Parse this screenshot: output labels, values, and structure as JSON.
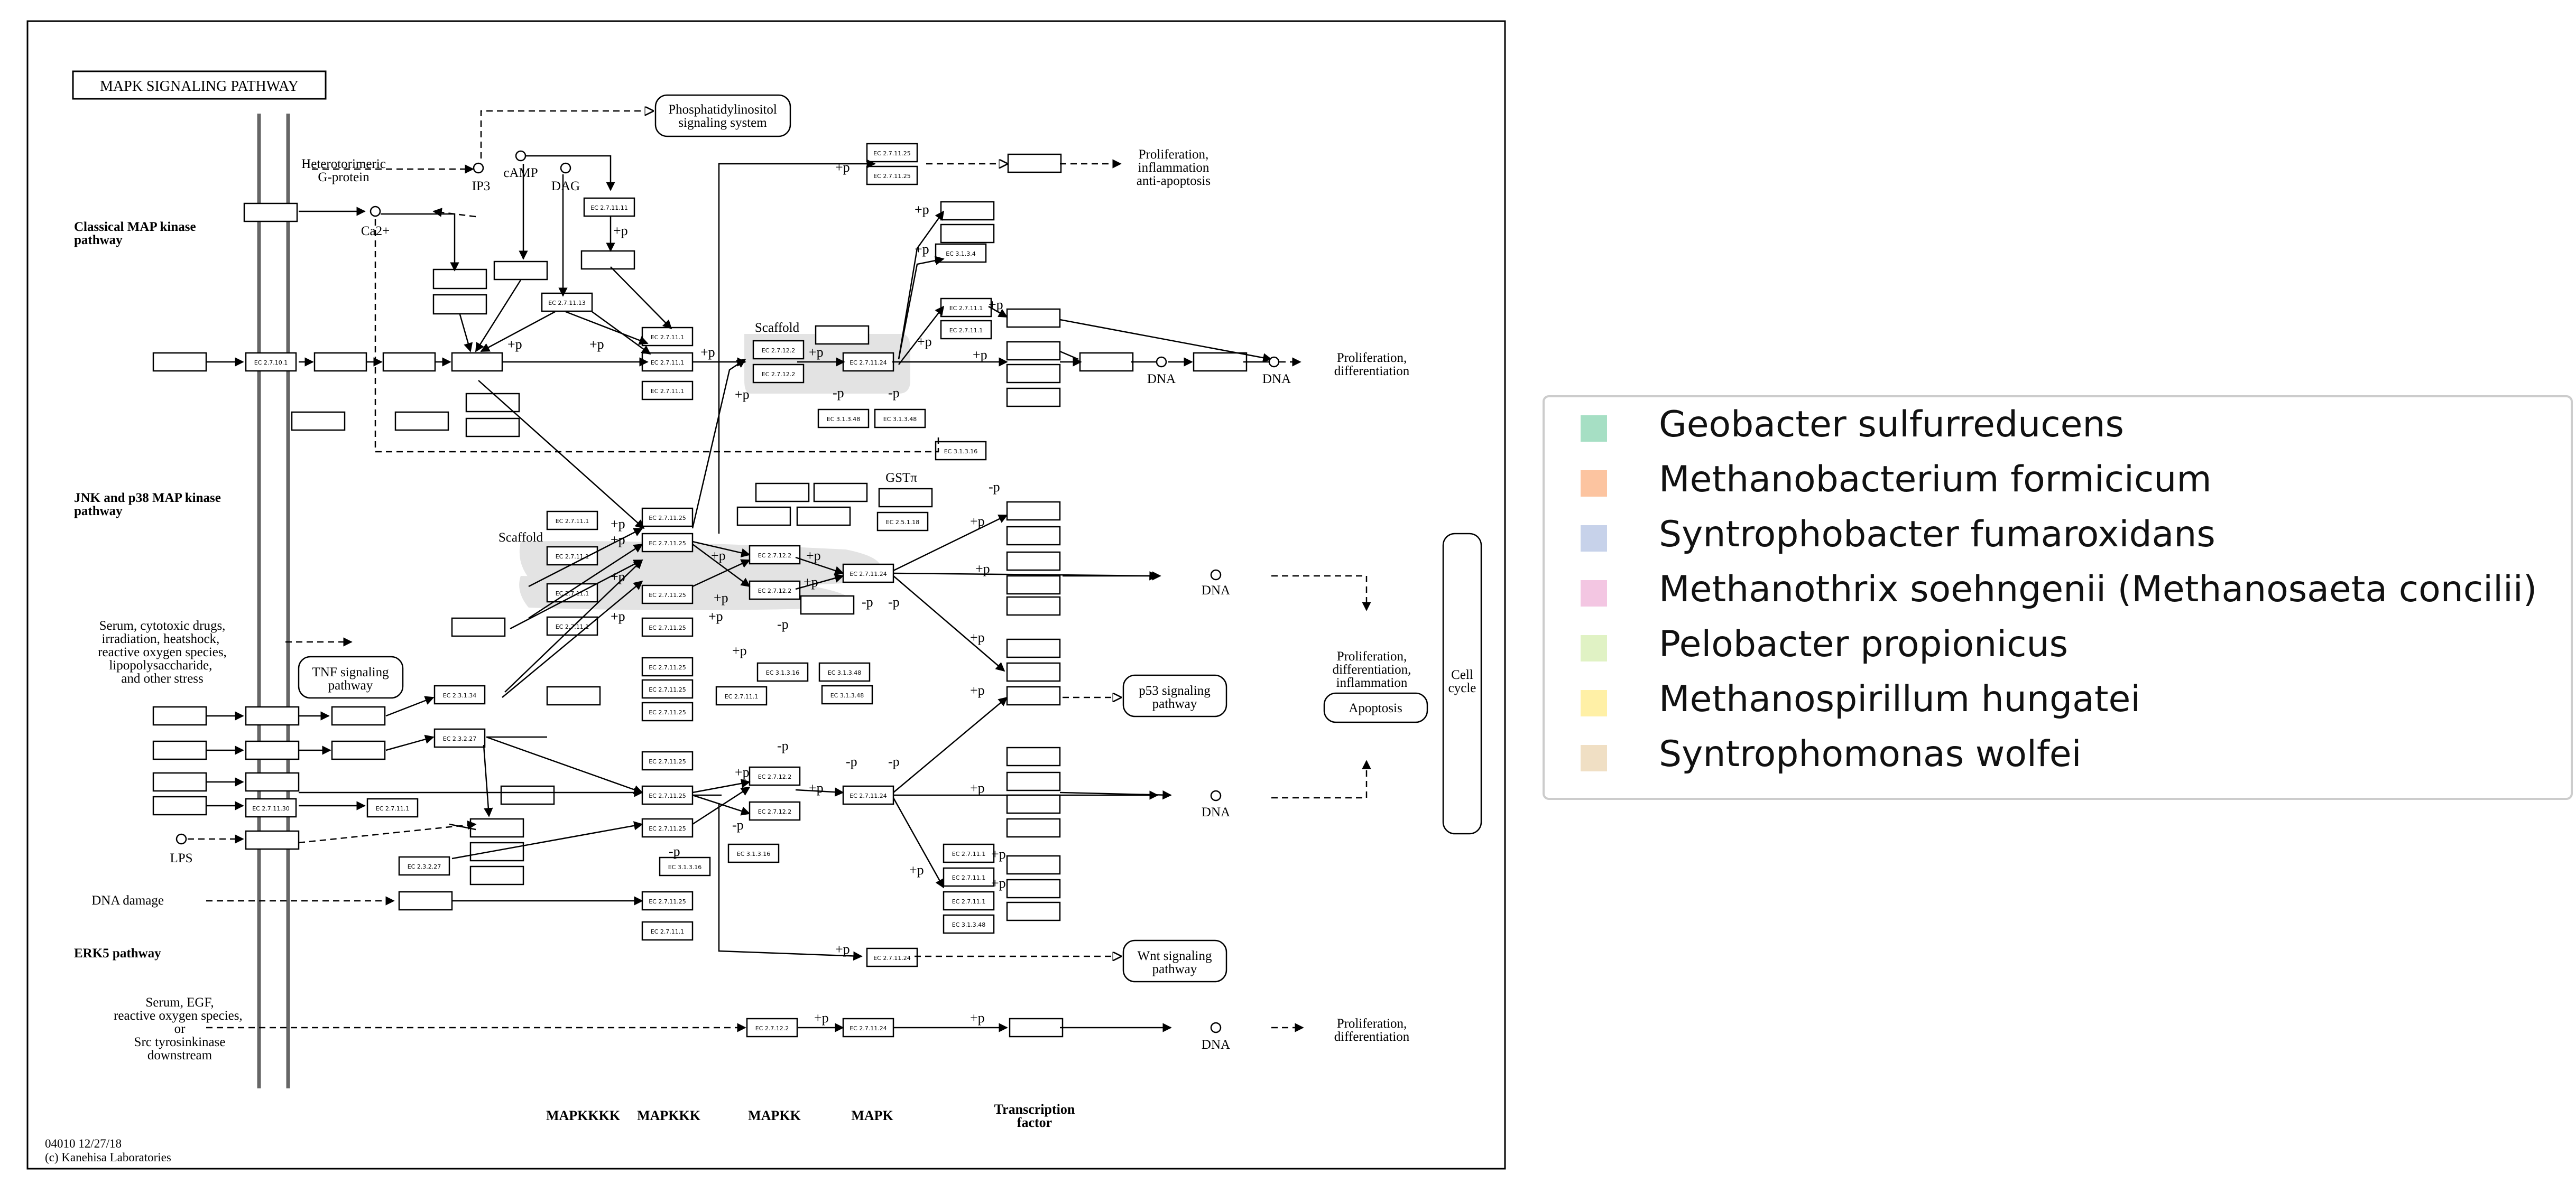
{
  "title": "MAPK SIGNALING PATHWAY",
  "sections": {
    "classical": "Classical MAP kinase pathway",
    "jnk": "JNK and p38 MAP kinase pathway",
    "erk5": "ERK5 pathway"
  },
  "annotations": {
    "phosphatidylinositol": "Phosphatidylinositol signaling system",
    "heterotrimeric": "Heterotorimeric G-protein",
    "ip3": "IP3",
    "camp": "cAMP",
    "dag": "DAG",
    "ca": "Ca2+",
    "scaffold": "Scaffold",
    "gstp": "GSTπ",
    "serum_stress": "Serum, cytotoxic drugs, irradiation, heatshock, reactive oxygen species, lipopolysaccharide, and other stress",
    "tnf": "TNF signaling pathway",
    "lps": "LPS",
    "dna_damage": "DNA damage",
    "serum_egf": "Serum, EGF, reactive oxygen species, or Src tyrosinkinase downstream",
    "prolif_inflam": "Proliferation, inflammation anti-apoptosis",
    "prolif_diff": "Proliferation, differentiation",
    "prolif_diff_inflam": "Proliferation, differentiation, inflammation",
    "apoptosis": "Apoptosis",
    "cell_cycle": "Cell cycle",
    "p53": "p53 signaling pathway",
    "wnt": "Wnt signaling pathway",
    "dna": "DNA"
  },
  "columns": [
    "MAPKKKK",
    "MAPKKK",
    "MAPKK",
    "MAPK",
    "Transcription factor"
  ],
  "footer": {
    "code": "04010 12/27/18",
    "copyright": "(c) Kanehisa Laboratories"
  },
  "ec": {
    "e1": "EC 2.7.10.1",
    "e2": "EC 2.7.11.11",
    "e3": "EC 2.7.11.13",
    "e4": "EC 2.7.11.1",
    "e5": "EC 2.7.11.25",
    "e6": "EC 2.7.11.24",
    "e7": "EC 2.7.12.2",
    "e8": "EC 3.1.3.48",
    "e9": "EC 3.1.3.16",
    "e10": "EC 2.3.1.34",
    "e11": "EC 2.3.2.27",
    "e12": "EC 2.7.11.30",
    "e13": "EC 3.1.3.4",
    "e14": "EC 2.5.1.18"
  },
  "legend": {
    "items": [
      {
        "label": "Geobacter sulfurreducens",
        "color": "#a6dfc4"
      },
      {
        "label": "Methanobacterium formicicum",
        "color": "#fcc4a0"
      },
      {
        "label": "Syntrophobacter fumaroxidans",
        "color": "#c7d2ea"
      },
      {
        "label": "Methanothrix soehngenii (Methanosaeta concilii)",
        "color": "#f3c6e2"
      },
      {
        "label": "Pelobacter propionicus",
        "color": "#e0f2c4"
      },
      {
        "label": "Methanospirillum hungatei",
        "color": "#fff0a6"
      },
      {
        "label": "Syntrophomonas wolfei",
        "color": "#f0dfc4"
      }
    ]
  }
}
